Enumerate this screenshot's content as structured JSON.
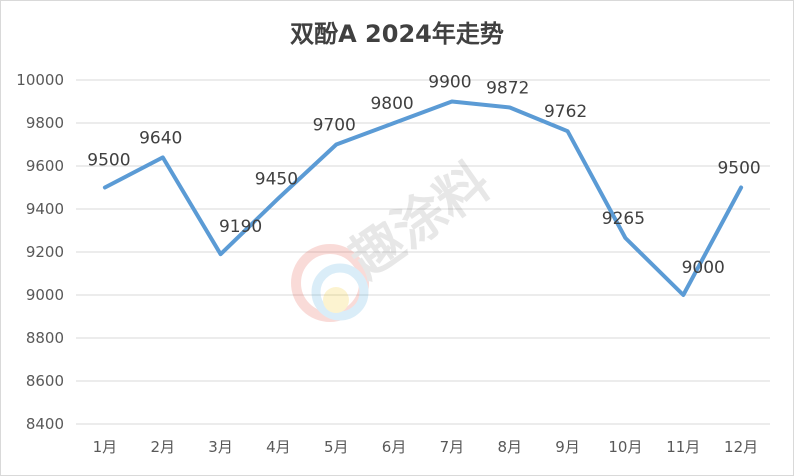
{
  "chart_data": {
    "type": "line",
    "title": "双酚A 2024年走势",
    "categories": [
      "1月",
      "2月",
      "3月",
      "4月",
      "5月",
      "6月",
      "7月",
      "8月",
      "9月",
      "10月",
      "11月",
      "12月"
    ],
    "series": [
      {
        "values": [
          9500,
          9640,
          9190,
          9450,
          9700,
          9800,
          9900,
          9872,
          9762,
          9265,
          9000,
          9500
        ]
      }
    ],
    "data_labels": [
      "9500",
      "9640",
      "9190",
      "9450",
      "9700",
      "9800",
      "9900",
      "9872",
      "9762",
      "9265",
      "9000",
      "9500"
    ],
    "ylim": [
      8400,
      10000
    ],
    "yticks": [
      8400,
      8600,
      8800,
      9000,
      9200,
      9400,
      9600,
      9800,
      10000
    ],
    "ytick_labels": [
      "8400",
      "8600",
      "8800",
      "9000",
      "9200",
      "9400",
      "9600",
      "9800",
      "10000"
    ],
    "grid": true,
    "line_color": "#5b9bd5",
    "watermark": "趣涂料"
  }
}
